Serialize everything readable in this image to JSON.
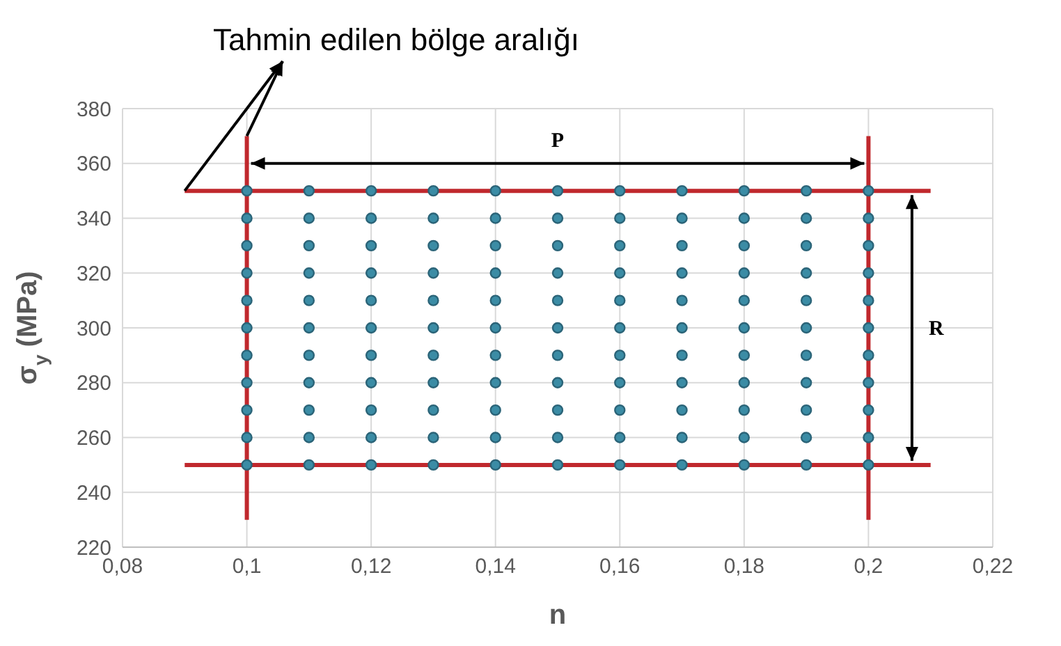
{
  "chart_data": {
    "type": "scatter",
    "title": "Tahmin edilen bölge aralığı",
    "xlabel": "n",
    "ylabel": "σ$_{y}$ (MPa)",
    "xlim": [
      0.08,
      0.22
    ],
    "xticks": [
      {
        "value": 0.08,
        "label": "0,08"
      },
      {
        "value": 0.1,
        "label": "0,1"
      },
      {
        "value": 0.12,
        "label": "0,12"
      },
      {
        "value": 0.14,
        "label": "0,14"
      },
      {
        "value": 0.16,
        "label": "0,16"
      },
      {
        "value": 0.18,
        "label": "0,18"
      },
      {
        "value": 0.2,
        "label": "0,2"
      },
      {
        "value": 0.22,
        "label": "0,22"
      }
    ],
    "ylim": [
      220,
      380
    ],
    "yticks": [
      220,
      240,
      260,
      280,
      300,
      320,
      340,
      360,
      380
    ],
    "grid": true,
    "series": [
      {
        "type": "line",
        "color": "#c0282d",
        "marker": "none",
        "x": [
          0.09,
          0.21
        ],
        "values": [
          350,
          350
        ]
      },
      {
        "type": "line",
        "color": "#c0282d",
        "marker": "none",
        "x": [
          0.09,
          0.21
        ],
        "values": [
          250,
          250
        ]
      },
      {
        "type": "line",
        "color": "#c0282d",
        "marker": "none",
        "x": [
          0.1,
          0.1
        ],
        "values": [
          230,
          370
        ]
      },
      {
        "type": "line",
        "color": "#c0282d",
        "marker": "none",
        "x": [
          0.2,
          0.2
        ],
        "values": [
          230,
          370
        ]
      },
      {
        "color": "#3b8ca5",
        "marker": "circle",
        "x": [
          0.1,
          0.1,
          0.1,
          0.1,
          0.1,
          0.1,
          0.1,
          0.1,
          0.1,
          0.1,
          0.1,
          0.11,
          0.11,
          0.11,
          0.11,
          0.11,
          0.11,
          0.11,
          0.11,
          0.11,
          0.11,
          0.11,
          0.12,
          0.12,
          0.12,
          0.12,
          0.12,
          0.12,
          0.12,
          0.12,
          0.12,
          0.12,
          0.12,
          0.13,
          0.13,
          0.13,
          0.13,
          0.13,
          0.13,
          0.13,
          0.13,
          0.13,
          0.13,
          0.13,
          0.14,
          0.14,
          0.14,
          0.14,
          0.14,
          0.14,
          0.14,
          0.14,
          0.14,
          0.14,
          0.14,
          0.15,
          0.15,
          0.15,
          0.15,
          0.15,
          0.15,
          0.15,
          0.15,
          0.15,
          0.15,
          0.15,
          0.16,
          0.16,
          0.16,
          0.16,
          0.16,
          0.16,
          0.16,
          0.16,
          0.16,
          0.16,
          0.16,
          0.17,
          0.17,
          0.17,
          0.17,
          0.17,
          0.17,
          0.17,
          0.17,
          0.17,
          0.17,
          0.17,
          0.18,
          0.18,
          0.18,
          0.18,
          0.18,
          0.18,
          0.18,
          0.18,
          0.18,
          0.18,
          0.18,
          0.19,
          0.19,
          0.19,
          0.19,
          0.19,
          0.19,
          0.19,
          0.19,
          0.19,
          0.19,
          0.19,
          0.2,
          0.2,
          0.2,
          0.2,
          0.2,
          0.2,
          0.2,
          0.2,
          0.2,
          0.2,
          0.2
        ],
        "values": [
          250,
          260,
          270,
          280,
          290,
          300,
          310,
          320,
          330,
          340,
          350,
          250,
          260,
          270,
          280,
          290,
          300,
          310,
          320,
          330,
          340,
          350,
          250,
          260,
          270,
          280,
          290,
          300,
          310,
          320,
          330,
          340,
          350,
          250,
          260,
          270,
          280,
          290,
          300,
          310,
          320,
          330,
          340,
          350,
          250,
          260,
          270,
          280,
          290,
          300,
          310,
          320,
          330,
          340,
          350,
          250,
          260,
          270,
          280,
          290,
          300,
          310,
          320,
          330,
          340,
          350,
          250,
          260,
          270,
          280,
          290,
          300,
          310,
          320,
          330,
          340,
          350,
          250,
          260,
          270,
          280,
          290,
          300,
          310,
          320,
          330,
          340,
          350,
          250,
          260,
          270,
          280,
          290,
          300,
          310,
          320,
          330,
          340,
          350,
          250,
          260,
          270,
          280,
          290,
          300,
          310,
          320,
          330,
          340,
          350,
          250,
          260,
          270,
          280,
          290,
          300,
          310,
          320,
          330,
          340,
          350
        ]
      }
    ],
    "annotations": [
      "P",
      "R"
    ]
  }
}
